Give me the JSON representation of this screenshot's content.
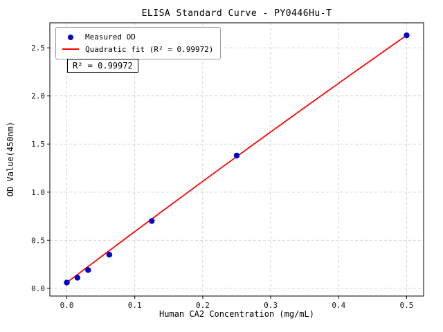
{
  "chart_data": {
    "type": "scatter",
    "title": "ELISA Standard Curve - PY0446Hu-T",
    "xlabel": "Human CA2 Concentration (mg/mL)",
    "ylabel": "OD Value(450nm)",
    "x": [
      0.0,
      0.0156,
      0.0313,
      0.0625,
      0.125,
      0.25,
      0.5
    ],
    "y": [
      0.06,
      0.11,
      0.19,
      0.35,
      0.7,
      1.38,
      2.63
    ],
    "series": [
      {
        "name": "Measured OD",
        "kind": "scatter",
        "color": "#0000cd",
        "marker": "dot"
      },
      {
        "name": "Quadratic fit (R² = 0.99972)",
        "kind": "line",
        "color": "#ff0000",
        "fit": {
          "a": -0.4,
          "b": 5.34,
          "c": 0.06
        },
        "x_range": [
          0.0,
          0.5
        ]
      }
    ],
    "xlim": [
      -0.025,
      0.525
    ],
    "ylim": [
      -0.08,
      2.76
    ],
    "xticks": [
      0.0,
      0.1,
      0.2,
      0.3,
      0.4,
      0.5
    ],
    "xtick_labels": [
      "0.0",
      "0.1",
      "0.2",
      "0.3",
      "0.4",
      "0.5"
    ],
    "yticks": [
      0.0,
      0.5,
      1.0,
      1.5,
      2.0,
      2.5
    ],
    "ytick_labels": [
      "0.0",
      "0.5",
      "1.0",
      "1.5",
      "2.0",
      "2.5"
    ],
    "grid": true,
    "grid_style": "dashed",
    "legend_position": "upper-left",
    "annotation": "R² = 0.99972",
    "colors": {
      "scatter": "#0000cd",
      "fit_line": "#ff0000",
      "grid": "#c9c9c9",
      "axes": "#000000"
    }
  }
}
